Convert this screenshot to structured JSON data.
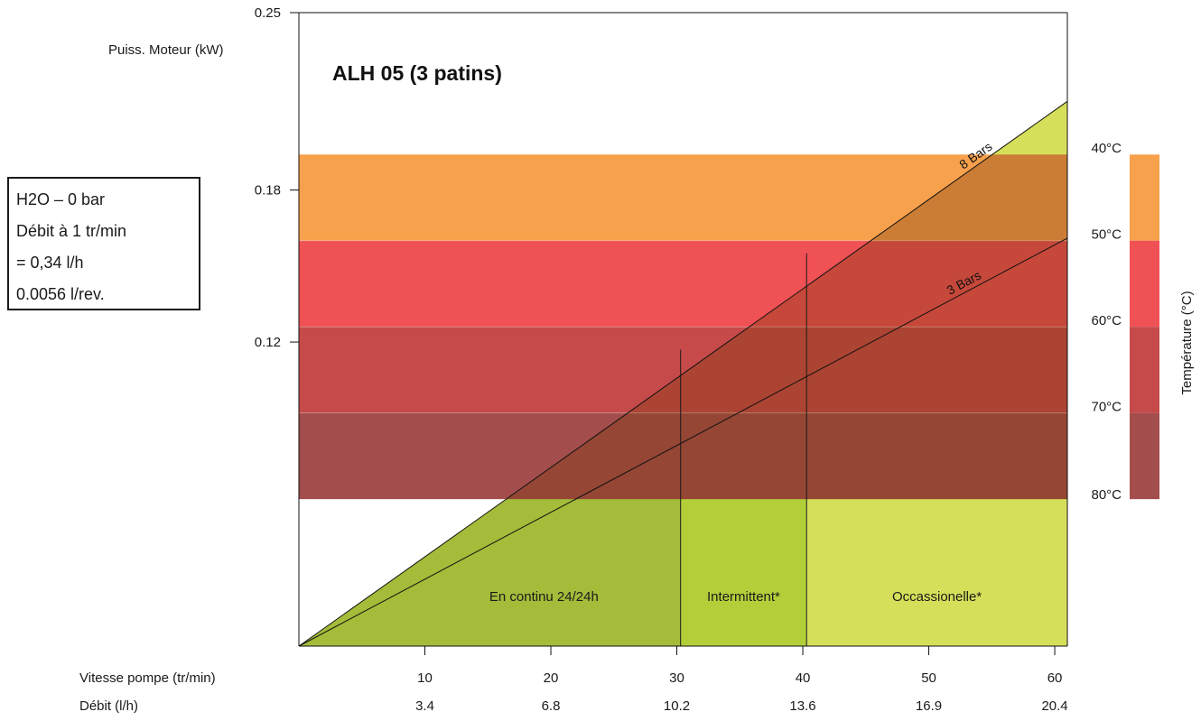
{
  "chart_data": {
    "type": "area",
    "title": "ALH 05 (3 patins)",
    "ylabel": "Puiss. Moteur (kW)",
    "y_ticks": [
      "0.25",
      "0.18",
      "0.12"
    ],
    "ylim": [
      0,
      0.25
    ],
    "xlim": [
      0,
      61
    ],
    "x_axes": [
      {
        "label": "Vitesse pompe (tr/min)",
        "ticks": [
          10,
          20,
          30,
          40,
          50,
          60
        ],
        "tick_labels": [
          "10",
          "20",
          "30",
          "40",
          "50",
          "60"
        ]
      },
      {
        "label": "Débit (l/h)",
        "tick_labels": [
          "3.4",
          "6.8",
          "10.2",
          "13.6",
          "16.9",
          "20.4"
        ]
      }
    ],
    "series": [
      {
        "name": "8 Bars",
        "x": [
          0,
          61
        ],
        "y": [
          0,
          0.215
        ]
      },
      {
        "name": "3 Bars",
        "x": [
          0,
          61
        ],
        "y": [
          0,
          0.161
        ]
      }
    ],
    "temperature_bands": {
      "label": "Température (°C)",
      "bands": [
        {
          "label": "40°C",
          "y_range": [
            0.16,
            0.194
          ],
          "color": "#f7a14d"
        },
        {
          "label": "50°C",
          "y_range": [
            0.126,
            0.16
          ],
          "color": "#ef5155"
        },
        {
          "label": "60°C",
          "y_range": [
            0.092,
            0.126
          ],
          "color": "#c64a4a"
        },
        {
          "label": "70°C",
          "y_range": [
            0.058,
            0.092
          ],
          "color": "#a44d4d"
        }
      ],
      "bottom_label": "80°C"
    },
    "zones": [
      {
        "label": "En continu 24/24h",
        "x_range": [
          0,
          30.3
        ],
        "color": "#a3bc3a"
      },
      {
        "label": "Intermittent*",
        "x_range": [
          30.3,
          40.3
        ],
        "color": "#b2cf3a"
      },
      {
        "label": "Occassionelle*",
        "x_range": [
          40.3,
          61
        ],
        "color": "#d5df5a"
      }
    ],
    "zone_dividers": [
      {
        "x": 30.3,
        "y_top": 0.117
      },
      {
        "x": 40.3,
        "y_top": 0.155
      }
    ]
  },
  "info_box": {
    "lines": [
      "H2O – 0 bar",
      "Débit à 1 tr/min",
      "= 0,34 l/h",
      "0.0056 l/rev."
    ]
  }
}
